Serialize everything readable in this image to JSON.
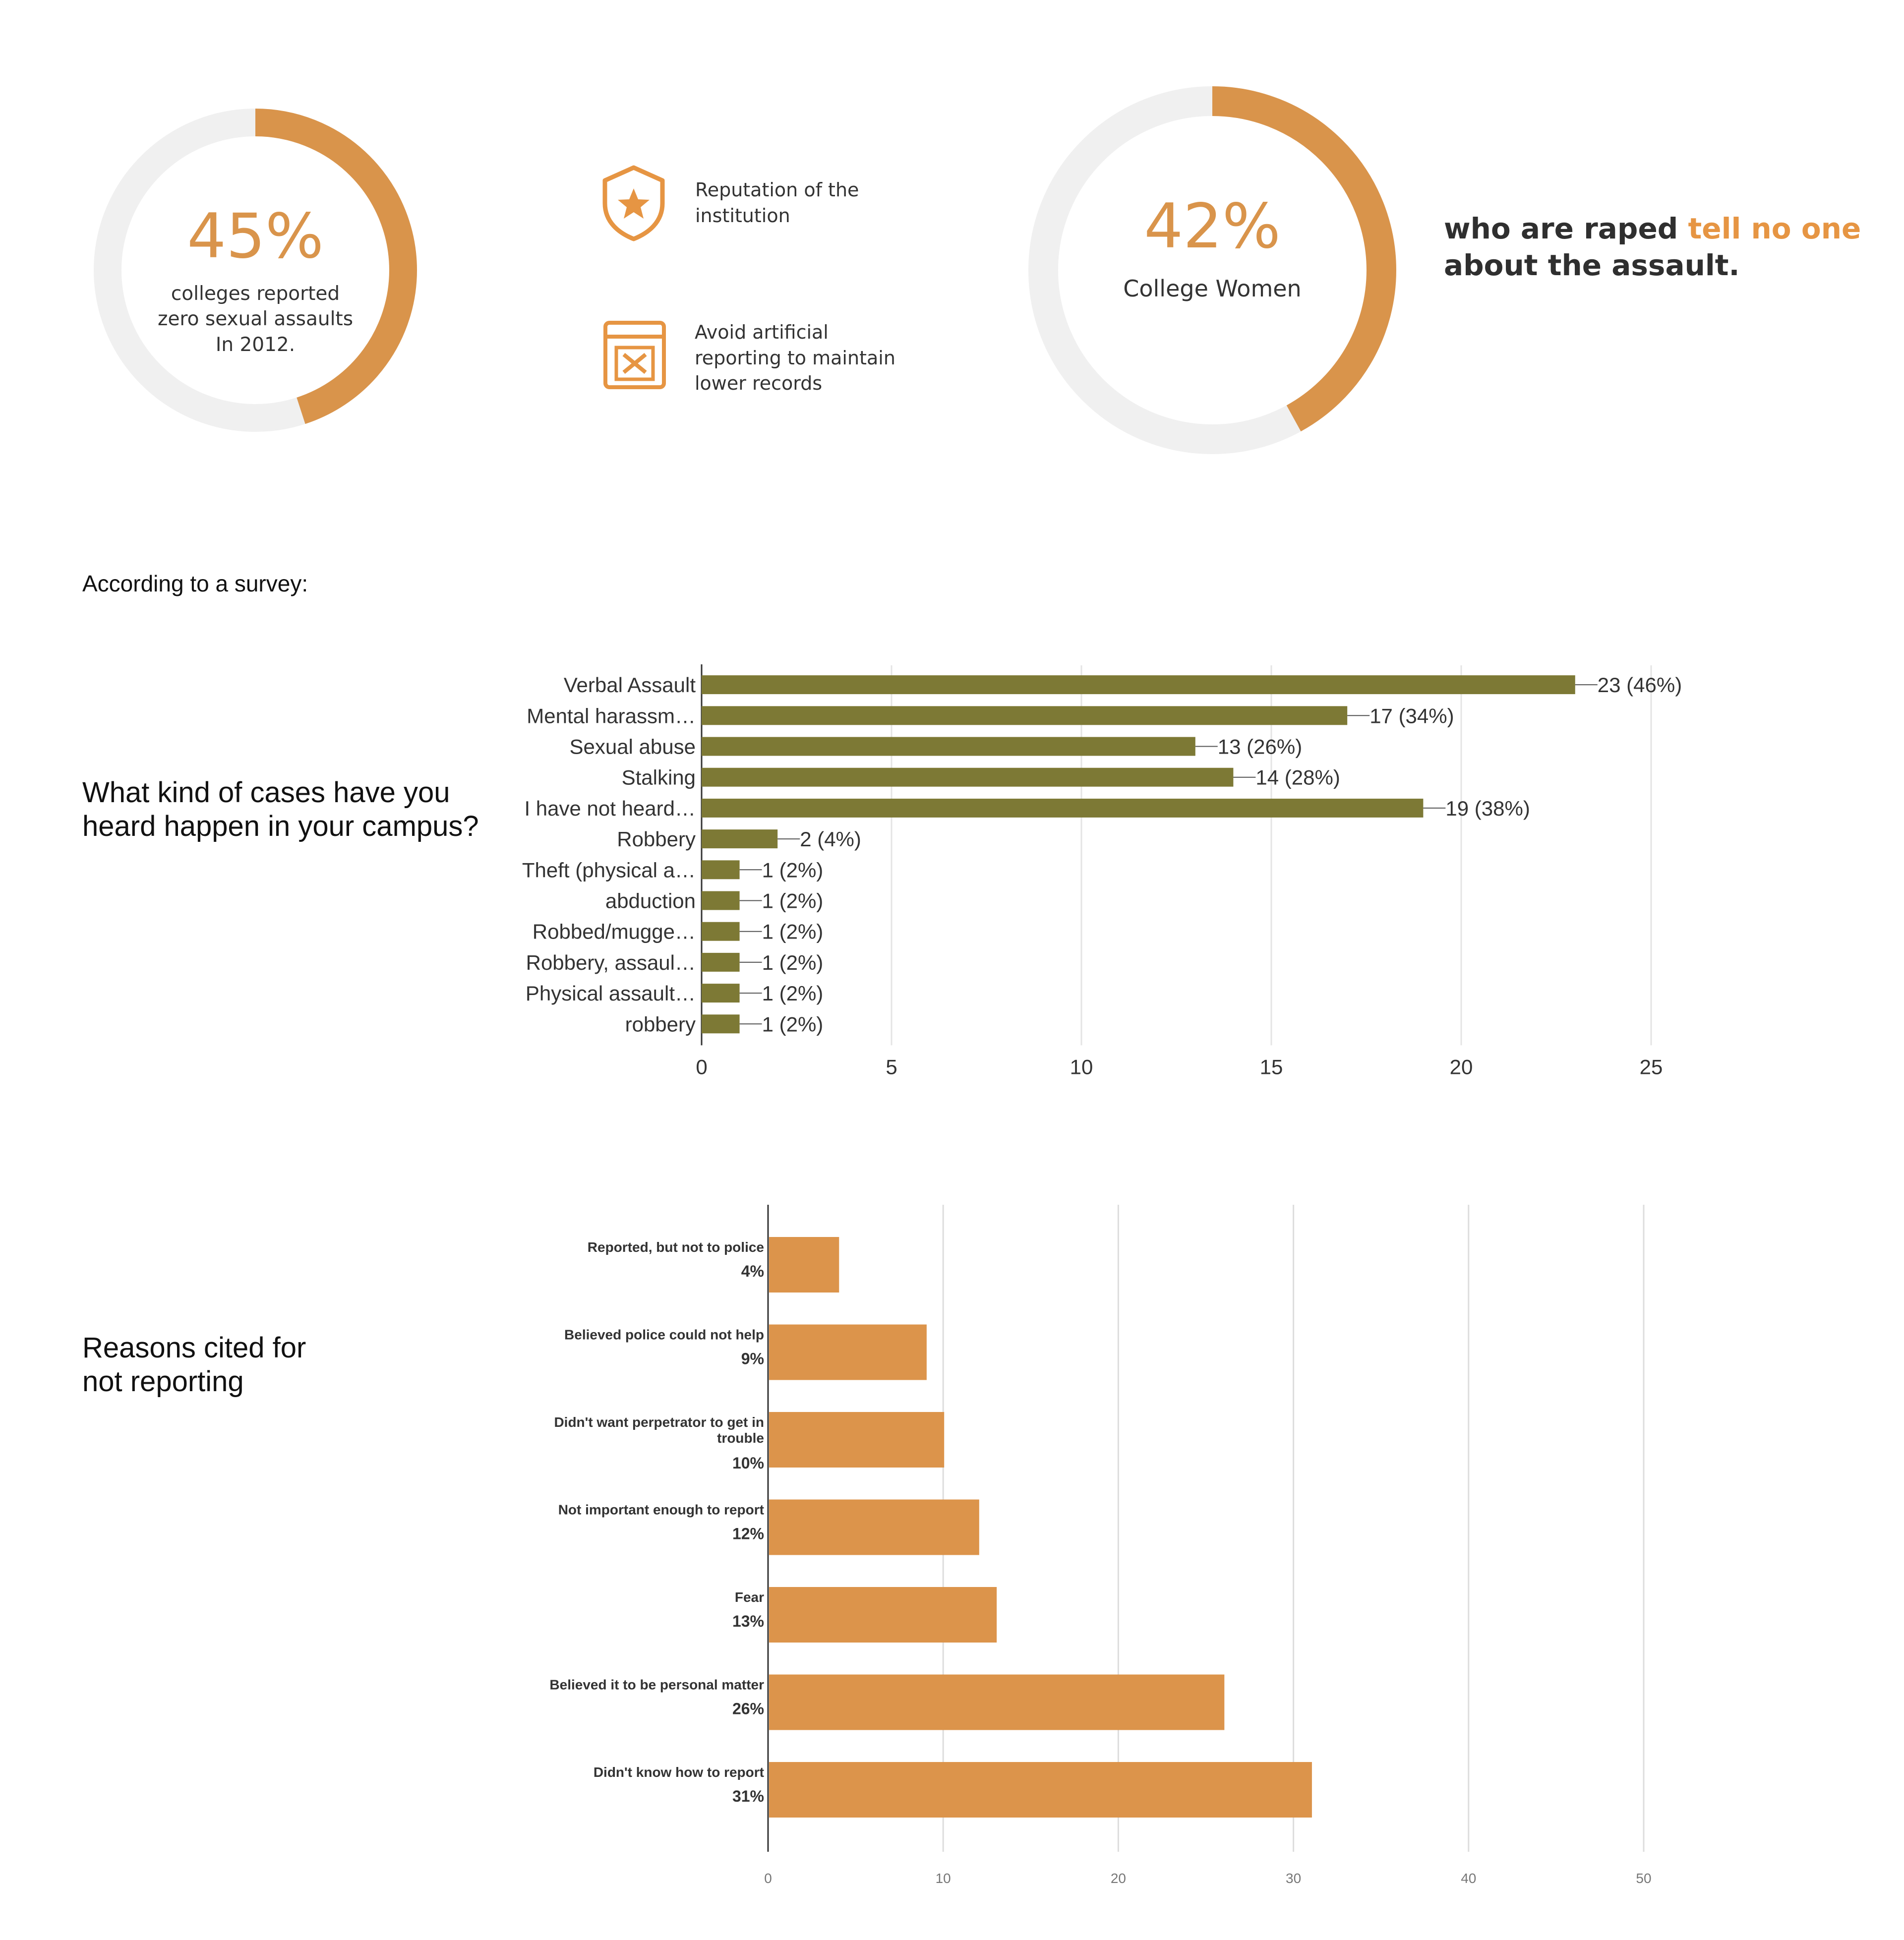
{
  "stat1": {
    "value": "45%",
    "fraction": 0.45,
    "caption": "colleges reported\nzero sexual assaults\nIn 2012."
  },
  "reasons": [
    {
      "icon": "shield-star-icon",
      "text": "Reputation of the\ninstitution"
    },
    {
      "icon": "calendar-cross-icon",
      "text": "Avoid artificial\nreporting to maintain\nlower records"
    }
  ],
  "stat2": {
    "value": "42%",
    "fraction": 0.42,
    "caption": "College Women"
  },
  "headline": {
    "part1": "who are raped ",
    "highlight": "tell no one",
    "part2": "about the assault."
  },
  "survey_label": "According to a survey:",
  "question_label": "What kind of cases have you\nheard happen in your campus?",
  "reasons_label": "Reasons cited for\nnot reporting",
  "colors": {
    "accent": "#d9944b",
    "donut_track": "#f0f0f0",
    "olive": "#7d7935",
    "orange_bar": "#dc944b",
    "headline_highlight": "#e69543"
  },
  "chart_data": [
    {
      "type": "bar",
      "orientation": "horizontal",
      "categories": [
        "Verbal Assault",
        "Mental harassm…",
        "Sexual abuse",
        "Stalking",
        "I have not heard…",
        "Robbery",
        "Theft (physical a…",
        "abduction",
        "Robbed/mugge…",
        "Robbery, assaul…",
        "Physical assault…",
        "robbery"
      ],
      "values": [
        23,
        17,
        13,
        14,
        19,
        2,
        1,
        1,
        1,
        1,
        1,
        1
      ],
      "data_labels": [
        "23 (46%)",
        "17 (34%)",
        "13 (26%)",
        "14 (28%)",
        "19 (38%)",
        "2 (4%)",
        "1 (2%)",
        "1 (2%)",
        "1 (2%)",
        "1 (2%)",
        "1 (2%)",
        "1 (2%)"
      ],
      "xlim": [
        0,
        25
      ],
      "xticks": [
        "0",
        "5",
        "10",
        "15",
        "20",
        "25"
      ],
      "grid": true,
      "color": "#7d7935"
    },
    {
      "type": "bar",
      "orientation": "horizontal",
      "categories": [
        [
          "Reported, but not to police"
        ],
        [
          "Believed police could not help"
        ],
        [
          "Didn't want perpetrator to get in",
          "trouble"
        ],
        [
          "Not important enough to report"
        ],
        [
          "Fear"
        ],
        [
          "Believed it to be personal matter"
        ],
        [
          "Didn't know how to report"
        ]
      ],
      "values": [
        4,
        9,
        10,
        12,
        13,
        26,
        31
      ],
      "value_labels": [
        "4%",
        "9%",
        "10%",
        "12%",
        "13%",
        "26%",
        "31%"
      ],
      "xlim": [
        0,
        50
      ],
      "xticks": [
        "0",
        "10",
        "20",
        "30",
        "40",
        "50"
      ],
      "grid": true,
      "color": "#dc944b"
    }
  ]
}
